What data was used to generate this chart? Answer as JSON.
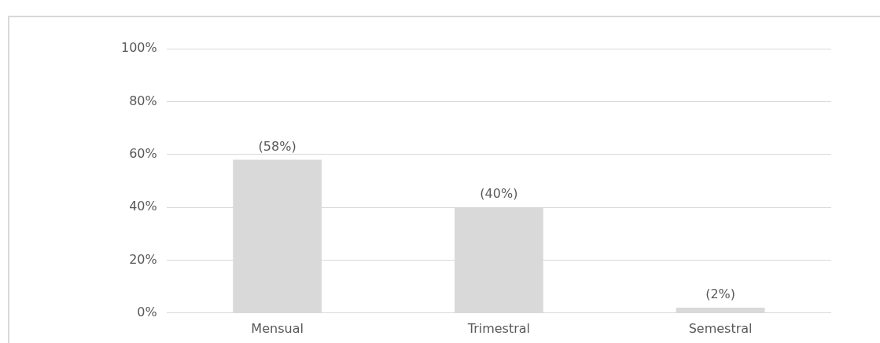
{
  "chart_data": {
    "type": "bar",
    "categories": [
      "Mensual",
      "Trimestral",
      "Semestral"
    ],
    "values": [
      58,
      40,
      2
    ],
    "value_labels": [
      "(58%)",
      "(40%)",
      "(2%)"
    ],
    "color": "#d9d9d9",
    "ylim": [
      0,
      100
    ],
    "yticks": [
      {
        "value": 0,
        "label": "0%"
      },
      {
        "value": 20,
        "label": "20%"
      },
      {
        "value": 40,
        "label": "40%"
      },
      {
        "value": 60,
        "label": "60%"
      },
      {
        "value": 80,
        "label": "80%"
      },
      {
        "value": 100,
        "label": "100%"
      }
    ],
    "grid": "y"
  }
}
